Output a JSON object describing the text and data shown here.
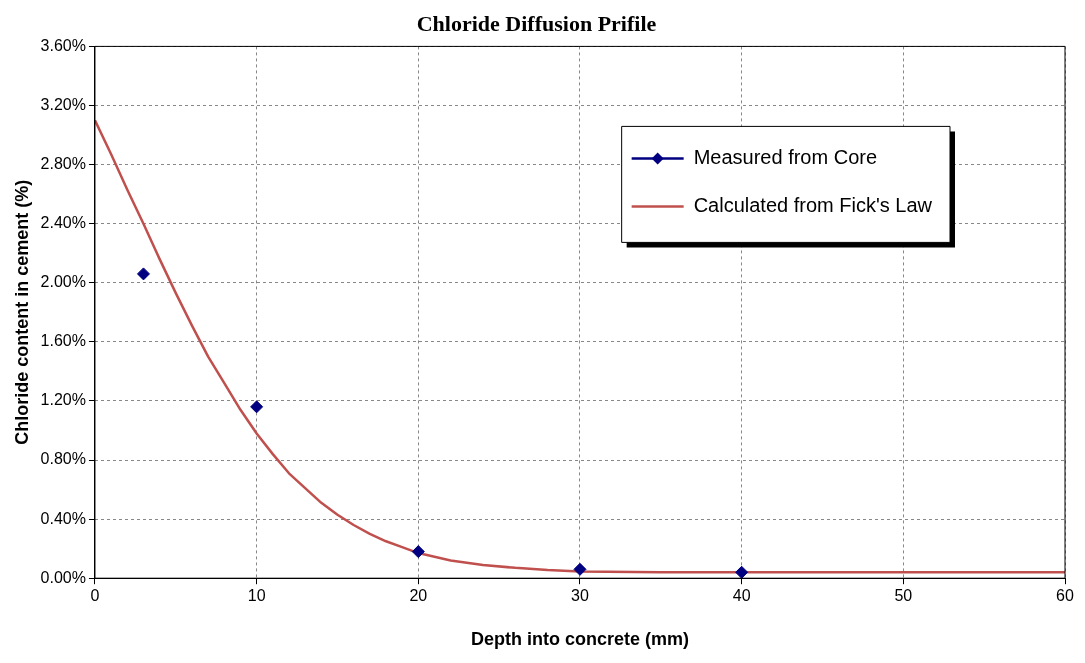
{
  "chart_data": {
    "type": "scatter",
    "title": "Chloride Diffusion Prifile",
    "xlabel": "Depth into concrete (mm)",
    "ylabel": "Chloride content in cement (%)",
    "xlim": [
      0,
      60
    ],
    "xticks": [
      0,
      10,
      20,
      30,
      40,
      50,
      60
    ],
    "ylim": [
      0,
      3.6
    ],
    "yticks": [
      {
        "value": 0,
        "label": "0.00%"
      },
      {
        "value": 0.4,
        "label": "0.40%"
      },
      {
        "value": 0.8,
        "label": "0.80%"
      },
      {
        "value": 1.2,
        "label": "1.20%"
      },
      {
        "value": 1.6,
        "label": "1.60%"
      },
      {
        "value": 2.0,
        "label": "2.00%"
      },
      {
        "value": 2.4,
        "label": "2.40%"
      },
      {
        "value": 2.8,
        "label": "2.80%"
      },
      {
        "value": 3.2,
        "label": "3.20%"
      },
      {
        "value": 3.6,
        "label": "3.60%"
      }
    ],
    "grid": true,
    "legend": "top right",
    "series": [
      {
        "name": "Measured from Core",
        "type": "scatter",
        "marker": "diamond",
        "color": "#000080",
        "x": [
          3,
          10,
          20,
          30,
          40
        ],
        "values": [
          2.06,
          1.16,
          0.18,
          0.06,
          0.04
        ]
      },
      {
        "name": "Calculated from Fick's Law",
        "type": "line",
        "marker": "none",
        "line_style": "solid",
        "color": "#c0504d",
        "x": [
          0,
          1,
          2,
          3,
          4,
          5,
          6,
          7,
          8,
          9,
          10,
          11,
          12,
          13,
          14,
          15,
          16,
          17,
          18,
          19,
          20,
          22,
          24,
          26,
          28,
          30,
          35,
          45,
          50,
          60
        ],
        "values": [
          3.1,
          2.87,
          2.63,
          2.4,
          2.16,
          1.93,
          1.71,
          1.5,
          1.32,
          1.14,
          0.98,
          0.84,
          0.71,
          0.61,
          0.51,
          0.43,
          0.36,
          0.3,
          0.25,
          0.21,
          0.17,
          0.12,
          0.09,
          0.07,
          0.055,
          0.045,
          0.04,
          0.04,
          0.04,
          0.04
        ]
      }
    ]
  }
}
